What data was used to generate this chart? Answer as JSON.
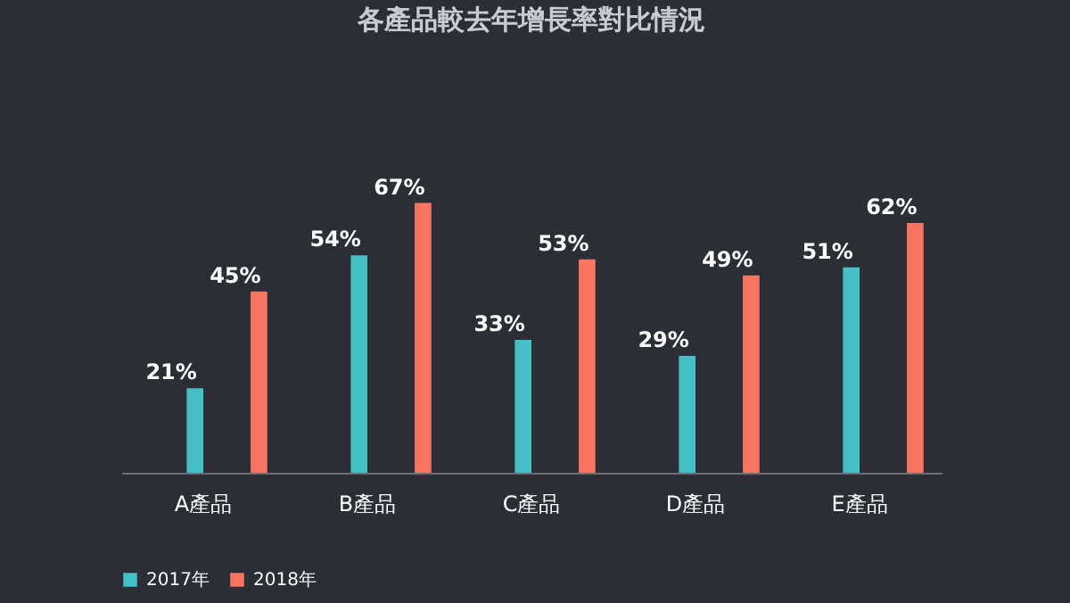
{
  "chart_data": {
    "type": "bar",
    "title": "各產品較去年增長率對比情況",
    "categories": [
      "A產品",
      "B產品",
      "C產品",
      "D產品",
      "E產品"
    ],
    "series": [
      {
        "name": "2017年",
        "color": "#45c0c6",
        "values": [
          21,
          54,
          33,
          29,
          51
        ],
        "value_labels": [
          "21%",
          "54%",
          "33%",
          "29%",
          "51%"
        ]
      },
      {
        "name": "2018年",
        "color": "#f87561",
        "values": [
          45,
          67,
          53,
          49,
          62
        ],
        "value_labels": [
          "45%",
          "67%",
          "53%",
          "49%",
          "62%"
        ]
      }
    ],
    "legend": "bottom"
  }
}
